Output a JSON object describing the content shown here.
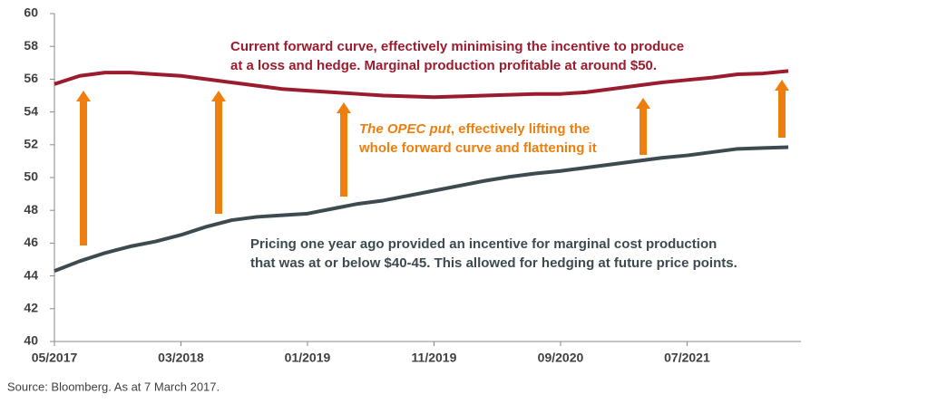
{
  "chart_data": {
    "type": "line",
    "x": [
      "05/2017",
      "07/2017",
      "09/2017",
      "11/2017",
      "01/2018",
      "03/2018",
      "05/2018",
      "07/2018",
      "09/2018",
      "11/2018",
      "01/2019",
      "03/2019",
      "05/2019",
      "07/2019",
      "09/2019",
      "11/2019",
      "01/2020",
      "03/2020",
      "05/2020",
      "07/2020",
      "09/2020",
      "11/2020",
      "01/2021",
      "03/2021",
      "05/2021",
      "07/2021",
      "09/2021",
      "11/2021",
      "01/2022",
      "03/2022"
    ],
    "series": [
      {
        "name": "Current forward curve",
        "color": "#9b1c2e",
        "values": [
          55.7,
          56.2,
          56.4,
          56.4,
          56.3,
          56.2,
          56.0,
          55.8,
          55.6,
          55.4,
          55.3,
          55.2,
          55.1,
          55.0,
          54.95,
          54.9,
          54.95,
          55.0,
          55.05,
          55.1,
          55.1,
          55.2,
          55.4,
          55.6,
          55.8,
          55.95,
          56.1,
          56.3,
          56.35,
          56.5
        ]
      },
      {
        "name": "Pricing one year ago",
        "color": "#3d4a50",
        "values": [
          44.3,
          44.9,
          45.4,
          45.8,
          46.1,
          46.5,
          47.0,
          47.4,
          47.6,
          47.7,
          47.8,
          48.1,
          48.4,
          48.6,
          48.9,
          49.2,
          49.5,
          49.8,
          50.05,
          50.25,
          50.4,
          50.6,
          50.8,
          51.0,
          51.2,
          51.35,
          51.55,
          51.75,
          51.8,
          51.85
        ]
      }
    ],
    "xlim": [
      "05/2017",
      "04/2022"
    ],
    "xticks": [
      "05/2017",
      "03/2018",
      "01/2019",
      "11/2019",
      "09/2020",
      "07/2021"
    ],
    "ylim": [
      40,
      60
    ],
    "yticks": [
      40,
      42,
      44,
      46,
      48,
      50,
      52,
      54,
      56,
      58,
      60
    ],
    "annotations": {
      "current": [
        "Current forward curve, effectively minimising the incentive to produce",
        "at a loss and hedge. Marginal production profitable at around $50."
      ],
      "opec": {
        "italic": "The OPEC put",
        "rest": ", effectively lifting the",
        "line2": "whole forward curve and flattening it"
      },
      "past": [
        "Pricing one year ago provided an incentive for marginal cost production",
        "that was at or below $40-45. This allowed for hedging at future price points."
      ]
    },
    "source": "Source: Bloomberg. As at 7 March 2017."
  }
}
